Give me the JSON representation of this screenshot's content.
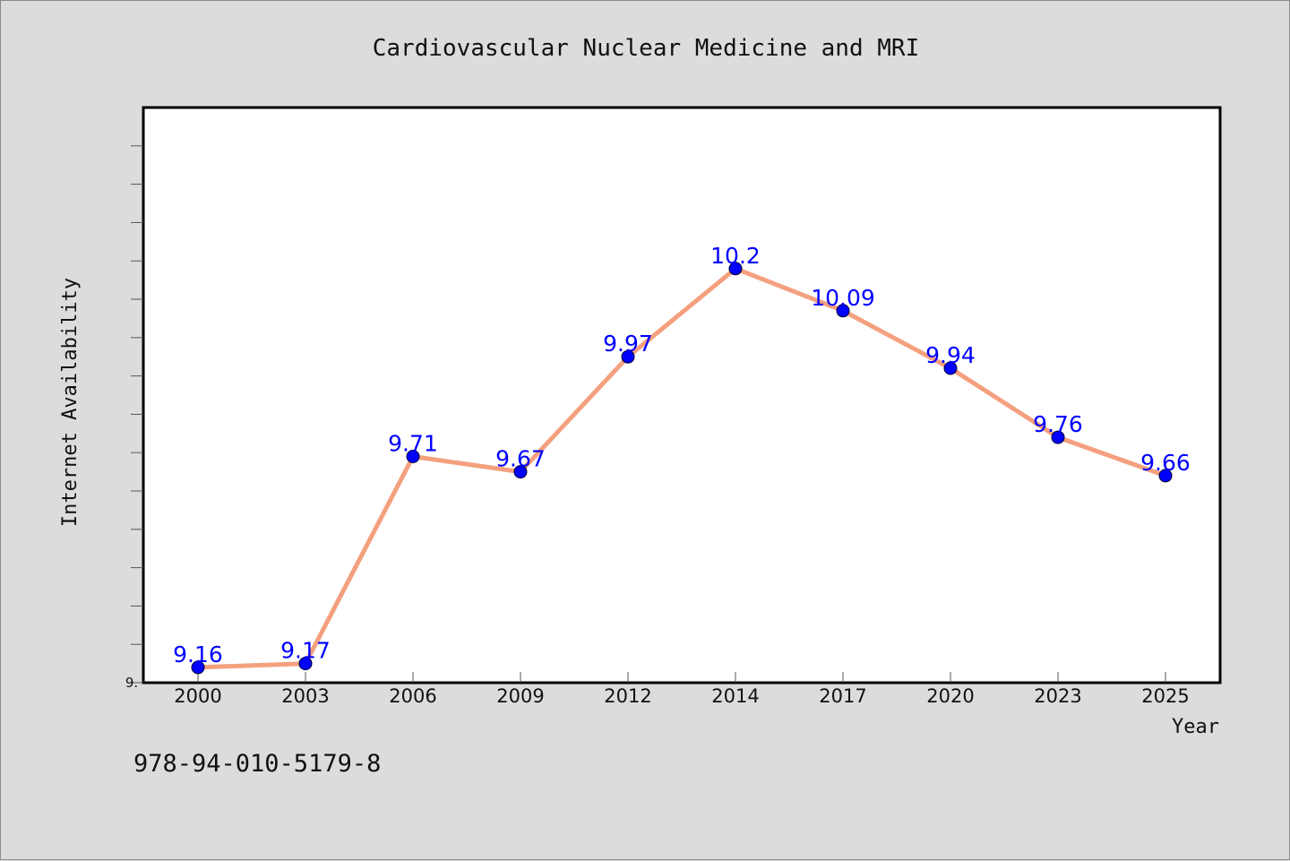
{
  "chart_data": {
    "type": "line",
    "title": "Cardiovascular Nuclear Medicine and MRI",
    "xlabel": "Year",
    "ylabel": "Internet Availability",
    "categories": [
      "2000",
      "2003",
      "2006",
      "2009",
      "2012",
      "2014",
      "2017",
      "2020",
      "2023",
      "2025"
    ],
    "series": [
      {
        "values": [
          9.16,
          9.17,
          9.71,
          9.67,
          9.97,
          10.2,
          10.09,
          9.94,
          9.76,
          9.66
        ]
      }
    ],
    "data_labels": [
      "9.16",
      "9.17",
      "9.71",
      "9.67",
      "9.97",
      "10.2",
      "10.09",
      "9.94",
      "9.76",
      "9.66"
    ],
    "y_tick_label": "9.",
    "ylim": [
      9.12,
      10.62
    ],
    "grid": false,
    "legend": "none",
    "line_color": "#f4a07e",
    "marker_color": "#0000ff",
    "label_color": "#0000ff"
  },
  "footer": {
    "code": "978-94-010-5179-8"
  }
}
